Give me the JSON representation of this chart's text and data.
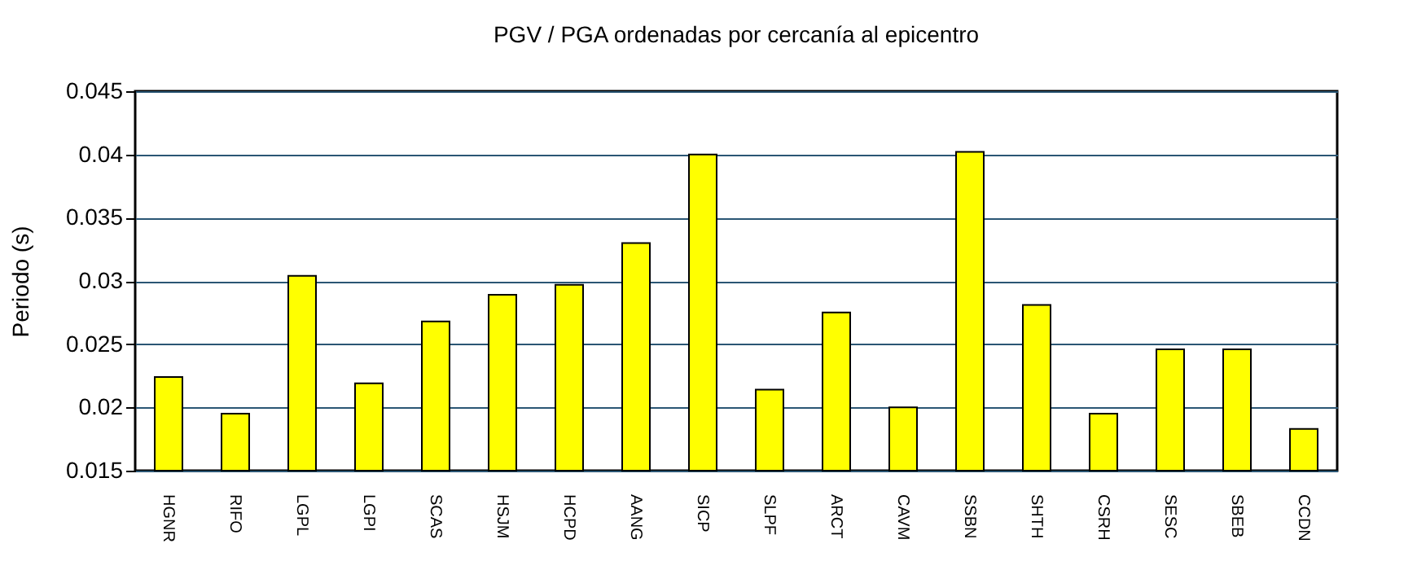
{
  "chart_data": {
    "type": "bar",
    "title": "PGV / PGA ordenadas por cercanía al epicentro",
    "ylabel": "Periodo (s)",
    "categories": [
      "HGNR",
      "RIFO",
      "LGPL",
      "LGPI",
      "SCAS",
      "HSJM",
      "HCPD",
      "AANG",
      "SICP",
      "SLPF",
      "ARCT",
      "CAVM",
      "SSBN",
      "SHTH",
      "CSRH",
      "SESC",
      "SBEB",
      "CCDN"
    ],
    "values": [
      0.0224,
      0.0195,
      0.0304,
      0.0219,
      0.0268,
      0.0289,
      0.0297,
      0.033,
      0.04,
      0.0214,
      0.0275,
      0.02,
      0.0402,
      0.0281,
      0.0195,
      0.0246,
      0.0246,
      0.0183
    ],
    "color": "#ffff00",
    "ylim": [
      0.015,
      0.045
    ],
    "yticks": [
      0.015,
      0.02,
      0.025,
      0.03,
      0.035,
      0.04,
      0.045
    ],
    "grid": "y"
  }
}
